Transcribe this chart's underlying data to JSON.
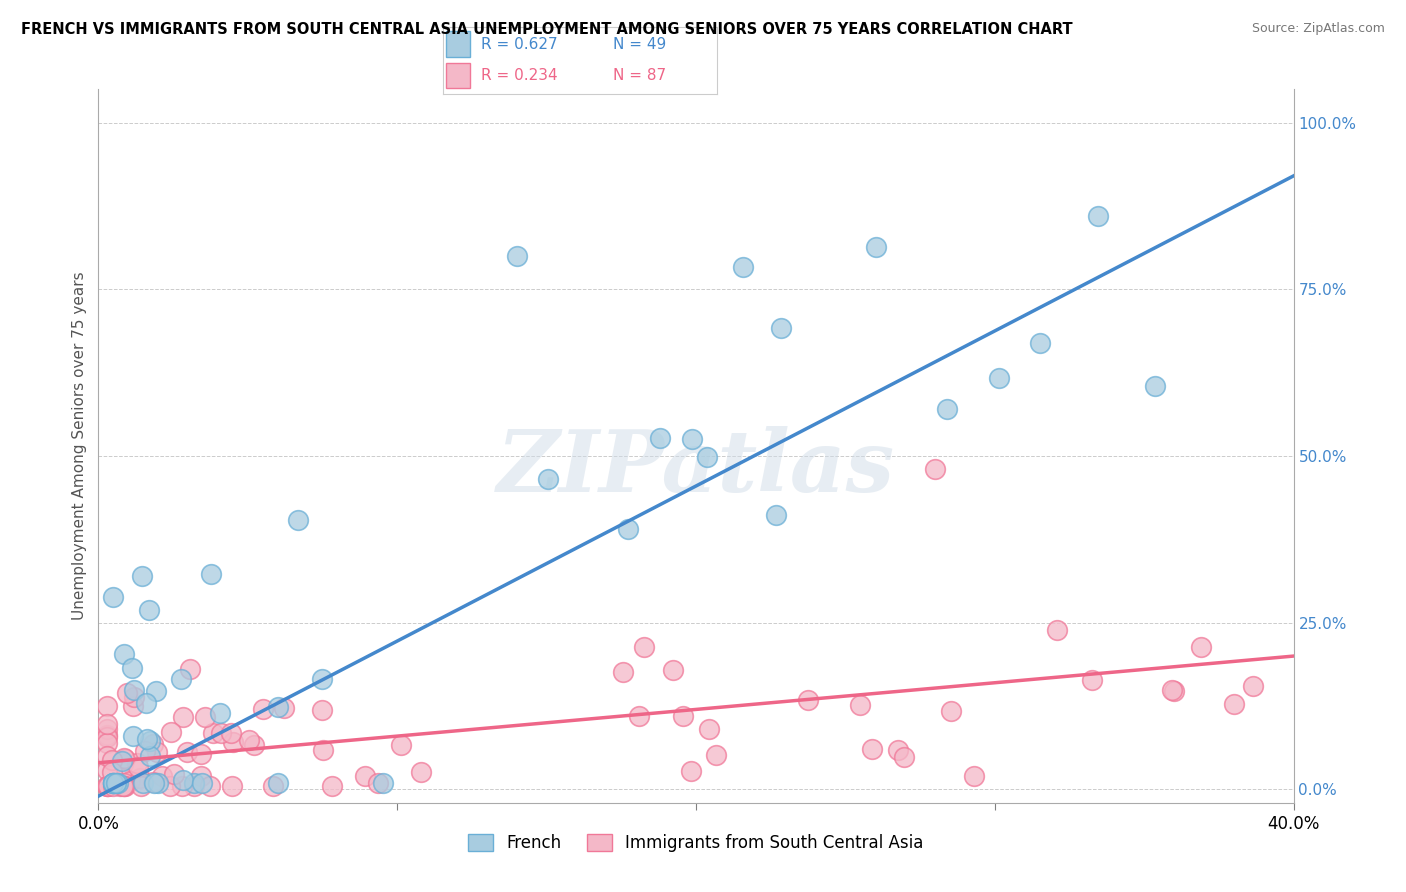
{
  "title": "FRENCH VS IMMIGRANTS FROM SOUTH CENTRAL ASIA UNEMPLOYMENT AMONG SENIORS OVER 75 YEARS CORRELATION CHART",
  "source": "Source: ZipAtlas.com",
  "ylabel": "Unemployment Among Seniors over 75 years",
  "right_yticks": [
    "100.0%",
    "75.0%",
    "50.0%",
    "25.0%",
    "0.0%"
  ],
  "right_ytick_vals": [
    1.0,
    0.75,
    0.5,
    0.25,
    0.0
  ],
  "legend_blue_r": "R = 0.627",
  "legend_blue_n": "N = 49",
  "legend_pink_r": "R = 0.234",
  "legend_pink_n": "N = 87",
  "legend_label_blue": "French",
  "legend_label_pink": "Immigrants from South Central Asia",
  "blue_color": "#a8cce0",
  "pink_color": "#f4b8c8",
  "blue_edge_color": "#6aafd6",
  "pink_edge_color": "#f07898",
  "blue_line_color": "#4488cc",
  "pink_line_color": "#ee6688",
  "watermark": "ZIPatlas",
  "xlim": [
    0.0,
    0.4
  ],
  "ylim": [
    -0.02,
    1.05
  ],
  "blue_line_x0": 0.0,
  "blue_line_y0": -0.01,
  "blue_line_x1": 0.4,
  "blue_line_y1": 0.92,
  "pink_line_x0": 0.0,
  "pink_line_y0": 0.04,
  "pink_line_x1": 0.4,
  "pink_line_y1": 0.2
}
